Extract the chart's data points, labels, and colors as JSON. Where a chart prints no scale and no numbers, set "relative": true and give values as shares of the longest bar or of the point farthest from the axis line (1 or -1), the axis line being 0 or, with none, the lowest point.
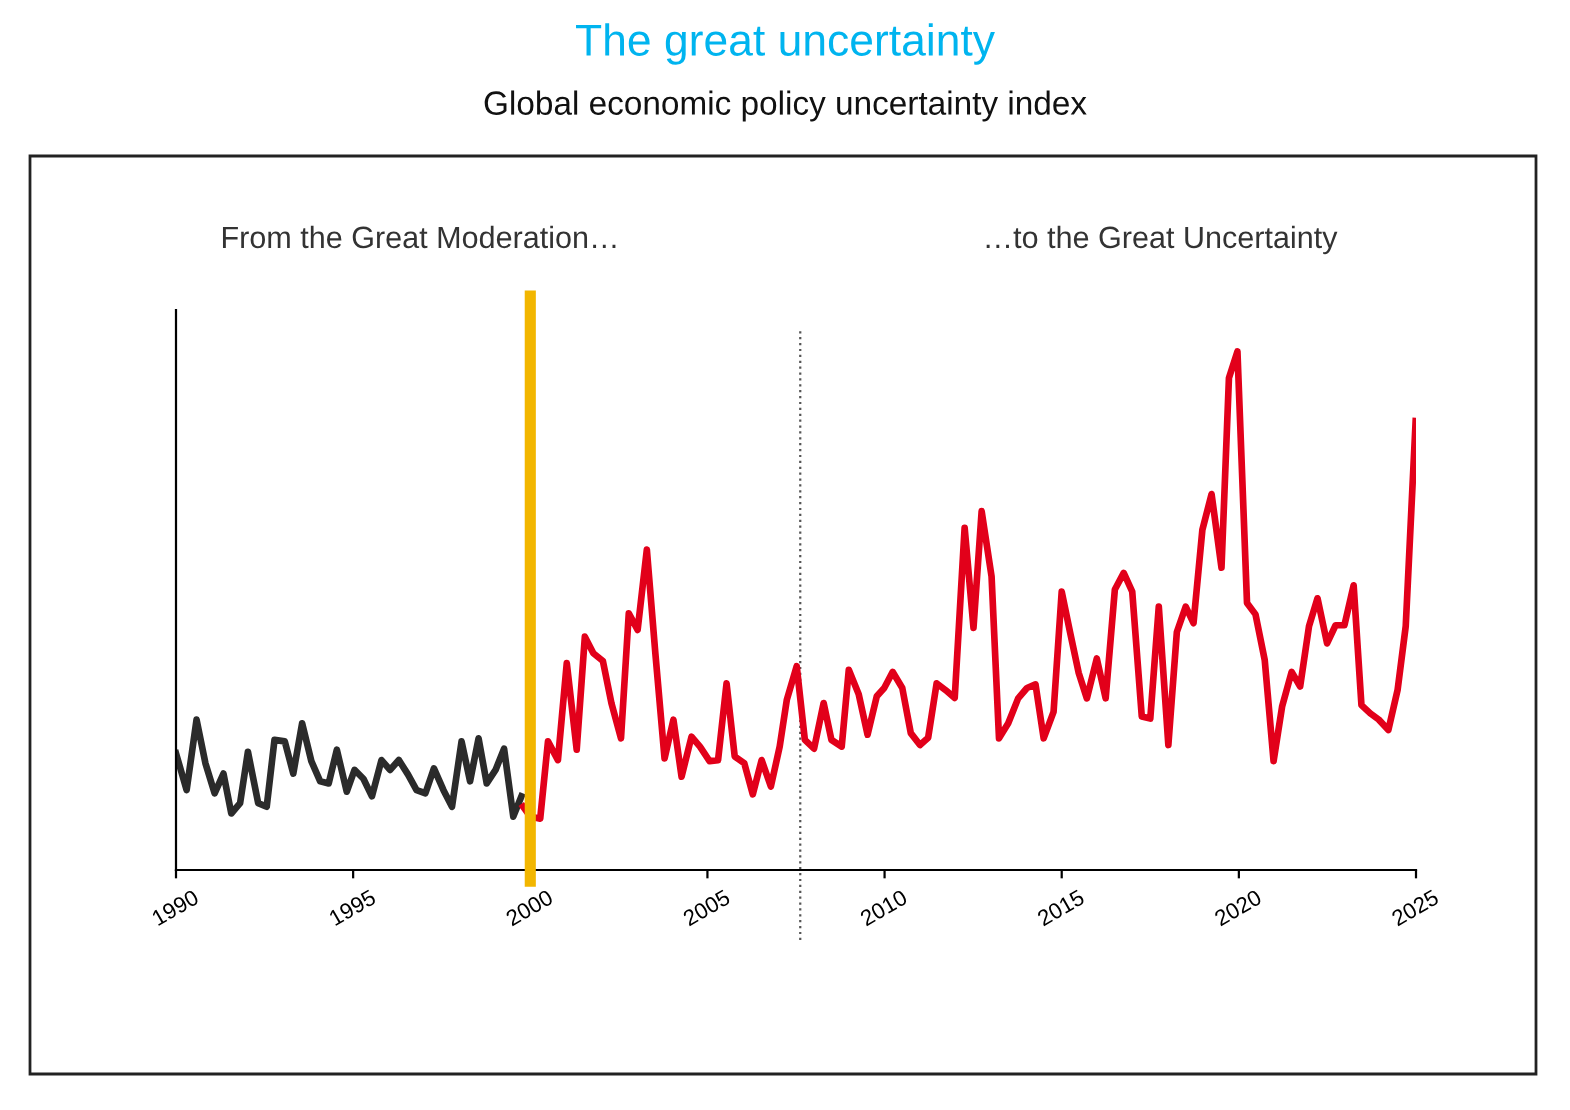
{
  "chart_data": {
    "type": "line",
    "title": "The great uncertainty",
    "subtitle": "Global economic policy uncertainty index",
    "relative": true,
    "xlim": [
      1990,
      2025
    ],
    "xticks": [
      1990,
      1995,
      2000,
      2005,
      2010,
      2015,
      2020,
      2025
    ],
    "grid": false,
    "legend": false,
    "marker": "none",
    "line_style": "solid",
    "annotations": [
      "From the Great Moderation…",
      "…to the Great Uncertainty"
    ],
    "ref_lines": [
      {
        "axis": "x",
        "value": 2000,
        "label": null,
        "color": "#f2b600",
        "line_style": "solid"
      },
      {
        "axis": "x",
        "value": 2007.62,
        "label": null,
        "color": "#555555",
        "line_style": "dotted"
      }
    ],
    "series": [
      {
        "color": "#2b2b2b",
        "x": [
          1990.0,
          1990.3,
          1990.58,
          1990.83,
          1991.09,
          1991.34,
          1991.56,
          1991.81,
          1992.03,
          1992.32,
          1992.56,
          1992.78,
          1993.07,
          1993.31,
          1993.56,
          1993.82,
          1994.07,
          1994.31,
          1994.54,
          1994.82,
          1995.04,
          1995.29,
          1995.53,
          1995.8,
          1996.04,
          1996.29,
          1996.55,
          1996.79,
          1997.04,
          1997.28,
          1997.55,
          1997.79,
          1998.06,
          1998.3,
          1998.54,
          1998.77,
          1999.02,
          1999.26,
          1999.52,
          1999.75
        ],
        "values": [
          0.225,
          0.154,
          0.29,
          0.206,
          0.148,
          0.186,
          0.109,
          0.129,
          0.228,
          0.129,
          0.122,
          0.251,
          0.248,
          0.186,
          0.283,
          0.21,
          0.171,
          0.167,
          0.232,
          0.151,
          0.193,
          0.176,
          0.142,
          0.212,
          0.193,
          0.212,
          0.184,
          0.154,
          0.148,
          0.196,
          0.154,
          0.122,
          0.248,
          0.171,
          0.254,
          0.167,
          0.193,
          0.234,
          0.103,
          0.142
        ]
      },
      {
        "color": "#e2001a",
        "x": [
          1999.8,
          2000.0,
          2000.28,
          2000.5,
          2000.78,
          2001.03,
          2001.31,
          2001.54,
          2001.78,
          2002.05,
          2002.29,
          2002.56,
          2002.78,
          2003.03,
          2003.29,
          2003.53,
          2003.79,
          2004.04,
          2004.27,
          2004.55,
          2004.79,
          2005.06,
          2005.3,
          2005.54,
          2005.77,
          2006.04,
          2006.28,
          2006.53,
          2006.79,
          2007.04,
          2007.24,
          2007.52,
          2007.75,
          2008.01,
          2008.28,
          2008.5,
          2008.79,
          2008.99,
          2009.27,
          2009.52,
          2009.78,
          2009.99,
          2010.23,
          2010.5,
          2010.74,
          2011.0,
          2011.23,
          2011.47,
          2011.72,
          2011.98,
          2012.26,
          2012.51,
          2012.74,
          2013.02,
          2013.23,
          2013.49,
          2013.77,
          2014.02,
          2014.26,
          2014.49,
          2014.77,
          2015.0,
          2015.24,
          2015.48,
          2015.71,
          2015.99,
          2016.24,
          2016.5,
          2016.75,
          2016.99,
          2017.26,
          2017.5,
          2017.74,
          2018.01,
          2018.25,
          2018.5,
          2018.72,
          2018.97,
          2019.23,
          2019.51,
          2019.72,
          2019.96,
          2020.23,
          2020.47,
          2020.73,
          2020.98,
          2021.22,
          2021.49,
          2021.73,
          2021.98,
          2022.22,
          2022.49,
          2022.73,
          2022.98,
          2023.24,
          2023.46,
          2023.71,
          2023.95,
          2024.22,
          2024.48,
          2024.71,
          2024.99
        ],
        "values": [
          0.122,
          0.103,
          0.099,
          0.248,
          0.212,
          0.399,
          0.232,
          0.45,
          0.418,
          0.403,
          0.322,
          0.254,
          0.495,
          0.463,
          0.618,
          0.418,
          0.215,
          0.29,
          0.18,
          0.257,
          0.238,
          0.21,
          0.212,
          0.36,
          0.219,
          0.206,
          0.146,
          0.212,
          0.161,
          0.238,
          0.328,
          0.393,
          0.251,
          0.234,
          0.322,
          0.251,
          0.238,
          0.386,
          0.339,
          0.261,
          0.335,
          0.351,
          0.382,
          0.351,
          0.264,
          0.241,
          0.255,
          0.36,
          0.347,
          0.332,
          0.66,
          0.467,
          0.692,
          0.566,
          0.254,
          0.283,
          0.331,
          0.351,
          0.358,
          0.254,
          0.305,
          0.537,
          0.457,
          0.38,
          0.331,
          0.408,
          0.331,
          0.541,
          0.573,
          0.537,
          0.296,
          0.292,
          0.508,
          0.241,
          0.459,
          0.508,
          0.476,
          0.656,
          0.725,
          0.583,
          0.949,
          1,
          0.515,
          0.493,
          0.405,
          0.21,
          0.315,
          0.382,
          0.354,
          0.47,
          0.524,
          0.437,
          0.472,
          0.472,
          0.549,
          0.318,
          0.302,
          0.29,
          0.27,
          0.347,
          0.47,
          0.866
        ]
      }
    ]
  }
}
